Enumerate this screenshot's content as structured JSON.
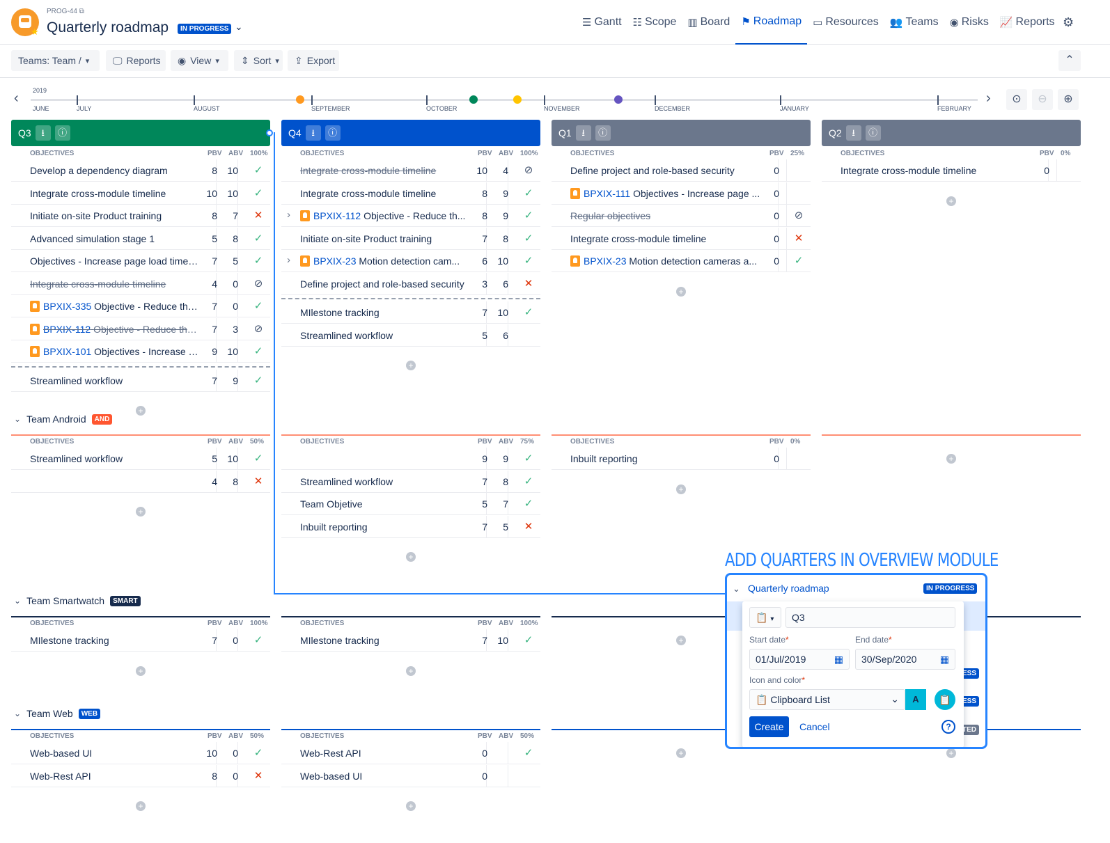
{
  "header": {
    "project_key": "PROG-44",
    "title": "Quarterly roadmap",
    "status": "IN PROGRESS",
    "nav": [
      {
        "label": "Gantt",
        "icon": "gantt-icon",
        "glyph": "☰"
      },
      {
        "label": "Scope",
        "icon": "list-icon",
        "glyph": "☷"
      },
      {
        "label": "Board",
        "icon": "board-icon",
        "glyph": "▥"
      },
      {
        "label": "Roadmap",
        "icon": "roadmap-icon",
        "glyph": "⚑"
      },
      {
        "label": "Resources",
        "icon": "resources-icon",
        "glyph": "▭"
      },
      {
        "label": "Teams",
        "icon": "teams-icon",
        "glyph": "👥"
      },
      {
        "label": "Risks",
        "icon": "risks-icon",
        "glyph": "◉"
      },
      {
        "label": "Reports",
        "icon": "reports-chart-icon",
        "glyph": "📈"
      }
    ],
    "active_nav": "Roadmap"
  },
  "toolbar": {
    "teams_filter": "Teams: Team /",
    "reports": "Reports",
    "view": "View",
    "sort": "Sort",
    "export": "Export"
  },
  "timeline": {
    "year": "2019",
    "months": [
      "JUNE",
      "JULY",
      "AUGUST",
      "SEPTEMBER",
      "OCTOBER",
      "NOVEMBER",
      "DECEMBER",
      "JANUARY",
      "FEBRUARY"
    ],
    "milestone_colors": [
      "#ff991f",
      "#00875a",
      "#ffc400",
      "#6554c0"
    ]
  },
  "quarters": [
    {
      "label": "Q3",
      "color": "#00875a"
    },
    {
      "label": "Q4",
      "color": "#0052cc"
    },
    {
      "label": "Q1",
      "color": "#6b778c"
    },
    {
      "label": "Q2",
      "color": "#6b778c"
    }
  ],
  "col_headers": {
    "objectives": "OBJECTIVES",
    "pbv": "PBV",
    "abv": "ABV"
  },
  "sections": [
    {
      "team": null,
      "cols": [
        {
          "pct": "100%",
          "rows": [
            {
              "name": "Develop a dependency diagram",
              "pbv": "8",
              "abv": "10",
              "st": "ok"
            },
            {
              "name": "Integrate cross-module timeline",
              "pbv": "10",
              "abv": "10",
              "st": "ok"
            },
            {
              "name": "Initiate on-site Product training",
              "pbv": "8",
              "abv": "7",
              "st": "no"
            },
            {
              "name": "Advanced simulation stage 1",
              "pbv": "5",
              "abv": "8",
              "st": "ok"
            },
            {
              "name": "Objectives - Increase page load time b...",
              "pbv": "7",
              "abv": "5",
              "st": "ok"
            },
            {
              "name": "Integrate cross-module timeline",
              "pbv": "4",
              "abv": "0",
              "st": "blk",
              "strike": true
            },
            {
              "key": "BPXIX-335",
              "name": "Objective - Reduce the ...",
              "pbv": "7",
              "abv": "0",
              "st": "ok"
            },
            {
              "key": "BPXIX-112",
              "name": "Objective - Reduce the ...",
              "pbv": "7",
              "abv": "3",
              "st": "blk",
              "strike": true
            },
            {
              "key": "BPXIX-101",
              "name": "Objectives - Increase pa...",
              "pbv": "9",
              "abv": "10",
              "st": "ok"
            },
            {
              "dash": true
            },
            {
              "name": "Streamlined workflow",
              "pbv": "7",
              "abv": "9",
              "st": "ok"
            }
          ]
        },
        {
          "pct": "100%",
          "rows": [
            {
              "name": "Integrate cross-module timeline",
              "pbv": "10",
              "abv": "4",
              "st": "blk",
              "strike": true
            },
            {
              "name": "Integrate cross-module timeline",
              "pbv": "8",
              "abv": "9",
              "st": "ok"
            },
            {
              "key": "BPXIX-112",
              "name": "Objective - Reduce th...",
              "pbv": "8",
              "abv": "9",
              "st": "ok",
              "expand": true
            },
            {
              "name": "Initiate on-site Product training",
              "pbv": "7",
              "abv": "8",
              "st": "ok"
            },
            {
              "key": "BPXIX-23",
              "name": "Motion detection cam...",
              "pbv": "6",
              "abv": "10",
              "st": "ok",
              "expand": true
            },
            {
              "name": "Define project and role-based security",
              "pbv": "3",
              "abv": "6",
              "st": "no"
            },
            {
              "dash": true
            },
            {
              "name": "MIlestone tracking",
              "pbv": "7",
              "abv": "10",
              "st": "ok"
            },
            {
              "name": "Streamlined workflow",
              "pbv": "5",
              "abv": "6",
              "st": ""
            }
          ]
        },
        {
          "pct": "25%",
          "rows": [
            {
              "name": "Define project and role-based security",
              "pbv": "0",
              "st": ""
            },
            {
              "key": "BPXIX-111",
              "name": "Objectives - Increase page ...",
              "pbv": "0",
              "st": ""
            },
            {
              "name": "Regular objectives",
              "pbv": "0",
              "st": "blk",
              "strike": true
            },
            {
              "name": "Integrate cross-module timeline",
              "pbv": "0",
              "st": "no"
            },
            {
              "key": "BPXIX-23",
              "name": "Motion detection cameras a...",
              "pbv": "0",
              "st": "ok"
            }
          ]
        },
        {
          "pct": "0%",
          "rows": [
            {
              "name": "Integrate cross-module timeline",
              "pbv": "0",
              "st": ""
            }
          ]
        }
      ]
    },
    {
      "team": {
        "name": "Team Android",
        "badge": "AND",
        "badge_color": "#ff5630",
        "line_color": "#ff8f73"
      },
      "cols": [
        {
          "pct": "50%",
          "rows": [
            {
              "name": "Streamlined workflow",
              "pbv": "5",
              "abv": "10",
              "st": "ok"
            },
            {
              "name": "",
              "pbv": "4",
              "abv": "8",
              "st": "no"
            }
          ]
        },
        {
          "pct": "75%",
          "rows": [
            {
              "name": "",
              "pbv": "9",
              "abv": "9",
              "st": "ok"
            },
            {
              "name": "Streamlined workflow",
              "pbv": "7",
              "abv": "8",
              "st": "ok"
            },
            {
              "name": "Team Objetive",
              "pbv": "5",
              "abv": "7",
              "st": "ok"
            },
            {
              "name": "Inbuilt reporting",
              "pbv": "7",
              "abv": "5",
              "st": "no"
            }
          ]
        },
        {
          "pct": "0%",
          "rows": [
            {
              "name": "Inbuilt reporting",
              "pbv": "0",
              "st": ""
            }
          ]
        },
        null
      ]
    },
    {
      "team": {
        "name": "Team Smartwatch",
        "badge": "SMART",
        "badge_color": "#172b4d",
        "line_color": "#172b4d"
      },
      "cols": [
        {
          "pct": "100%",
          "rows": [
            {
              "name": "MIlestone tracking",
              "pbv": "7",
              "abv": "0",
              "st": "ok"
            }
          ]
        },
        {
          "pct": "100%",
          "rows": [
            {
              "name": "MIlestone tracking",
              "pbv": "7",
              "abv": "10",
              "st": "ok"
            }
          ]
        },
        null,
        null
      ]
    },
    {
      "team": {
        "name": "Team Web",
        "badge": "WEB",
        "badge_color": "#0052cc",
        "line_color": "#0052cc"
      },
      "cols": [
        {
          "pct": "50%",
          "rows": [
            {
              "name": "Web-based UI",
              "pbv": "10",
              "abv": "0",
              "st": "ok"
            },
            {
              "name": "Web-Rest API",
              "pbv": "8",
              "abv": "0",
              "st": "no"
            }
          ]
        },
        {
          "pct": "50%",
          "rows": [
            {
              "name": "Web-Rest API",
              "pbv": "0",
              "abv": "",
              "st": "ok"
            },
            {
              "name": "Web-based UI",
              "pbv": "0",
              "abv": "",
              "st": ""
            }
          ]
        },
        null,
        null
      ]
    }
  ],
  "annotation": "ADD QUARTERS IN OVERVIEW MODULE",
  "popup": {
    "title": "Quarterly roadmap",
    "status": "IN PROGRESS",
    "name_value": "Q3",
    "start_label": "Start date",
    "start_value": "01/Jul/2019",
    "end_label": "End date",
    "end_value": "30/Sep/2020",
    "icon_label": "Icon and color",
    "icon_value": "Clipboard List",
    "color_letter": "A",
    "accent": "#00b8d9",
    "create": "Create",
    "cancel": "Cancel",
    "behind_badges": [
      "ESS",
      "ESS",
      "TED"
    ]
  }
}
